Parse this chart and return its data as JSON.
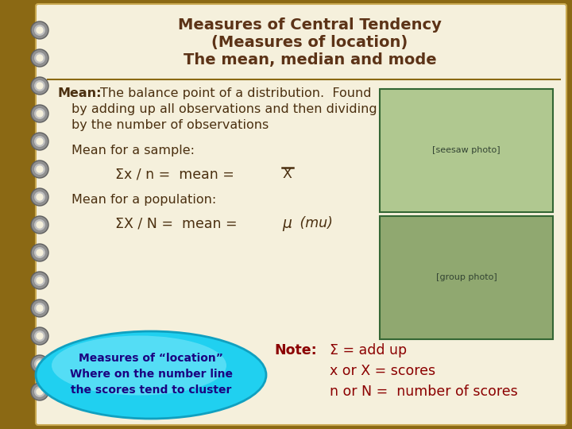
{
  "title_line1": "Measures of Central Tendency",
  "title_line2": "(Measures of location)",
  "title_line3": "The mean, median and mode",
  "title_color": "#5C3317",
  "bg_color": "#F5F0DC",
  "border_color": "#8B6914",
  "body_text_color": "#4B3010",
  "note_color": "#8B0000",
  "note_line1": "Σ = add up",
  "note_line2": "x or X = scores",
  "note_line3": "n or N =  number of scores",
  "bubble_text_line1": "Measures of “location”",
  "bubble_text_line2": "Where on the number line",
  "bubble_text_line3": "the scores tend to cluster",
  "bubble_text_color": "#1a0080",
  "notebook_bg": "#8B6914",
  "figsize": [
    7.2,
    5.4
  ],
  "dpi": 100
}
